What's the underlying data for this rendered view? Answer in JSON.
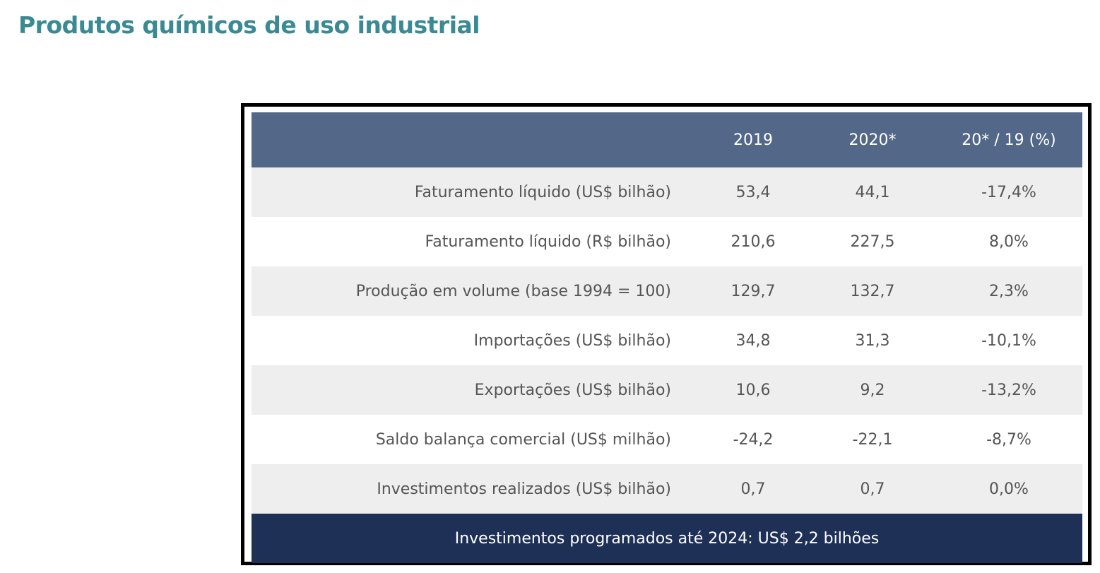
{
  "title": "Produtos químicos de uso industrial",
  "table": {
    "headers": [
      "",
      "2019",
      "2020*",
      "20* / 19 (%)"
    ],
    "rows": [
      {
        "label": "Faturamento líquido (US$ bilhão)",
        "y2019": "53,4",
        "y2020": "44,1",
        "var": "-17,4%"
      },
      {
        "label": "Faturamento líquido (R$ bilhão)",
        "y2019": "210,6",
        "y2020": "227,5",
        "var": "8,0%"
      },
      {
        "label": "Produção em volume (base 1994 = 100)",
        "y2019": "129,7",
        "y2020": "132,7",
        "var": "2,3%"
      },
      {
        "label": "Importações (US$ bilhão)",
        "y2019": "34,8",
        "y2020": "31,3",
        "var": "-10,1%"
      },
      {
        "label": "Exportações (US$ bilhão)",
        "y2019": "10,6",
        "y2020": "9,2",
        "var": "-13,2%"
      },
      {
        "label": "Saldo balança comercial (US$ milhão)",
        "y2019": "-24,2",
        "y2020": "-22,1",
        "var": "-8,7%"
      },
      {
        "label": "Investimentos realizados (US$ bilhão)",
        "y2019": "0,7",
        "y2020": "0,7",
        "var": "0,0%"
      }
    ],
    "footer": "Investimentos programados até 2024: US$ 2,2 bilhões"
  },
  "colors": {
    "title": "#3a8a93",
    "header_bg": "#536788",
    "footer_bg": "#1f3057",
    "row_alt_bg": "#eeeeee",
    "frame_border": "#000000"
  }
}
